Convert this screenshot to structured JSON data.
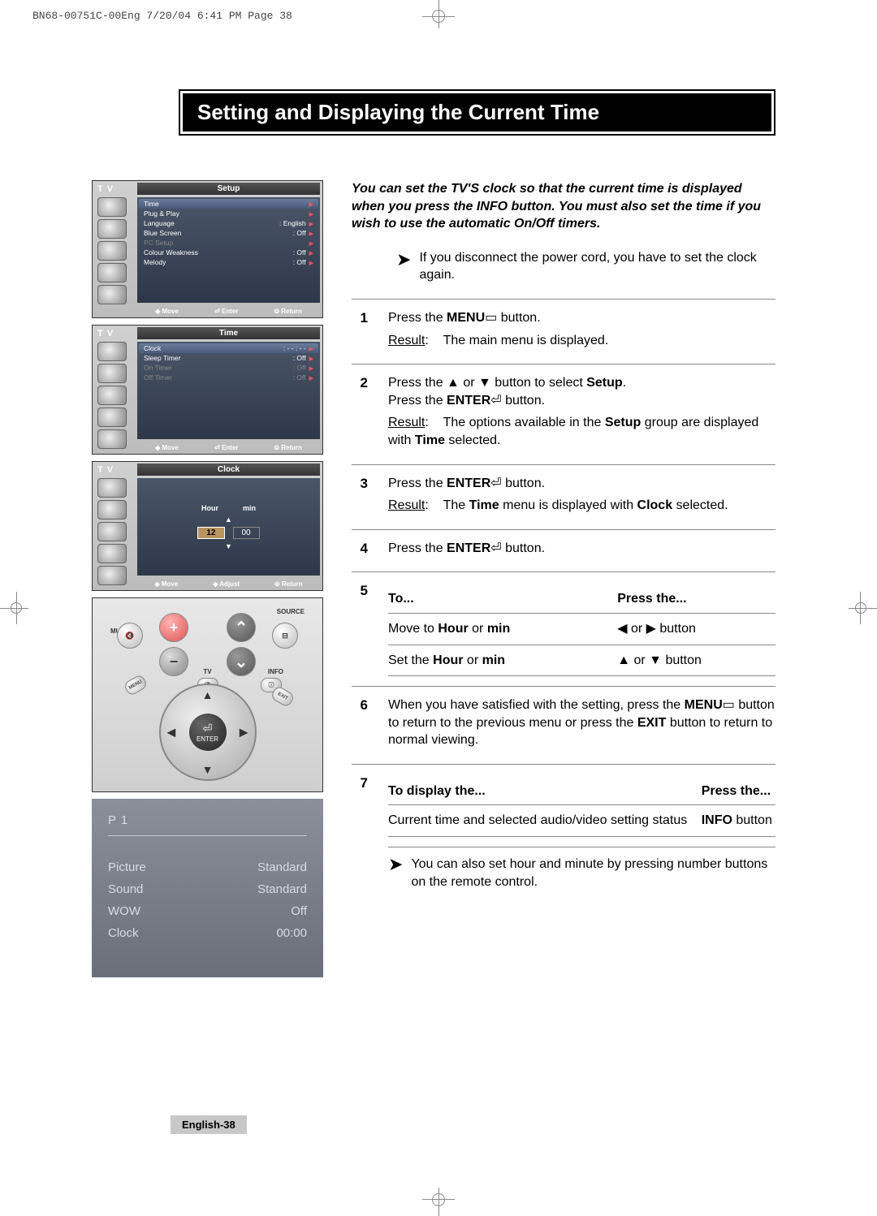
{
  "header_line": "BN68-00751C-00Eng  7/20/04 6:41 PM  Page 38",
  "title": "Setting and Displaying the Current Time",
  "intro": "You can set the TV'S clock so that the current time is displayed when you press the INFO button. You must also set the time if you wish to use the automatic On/Off timers.",
  "note": "If you disconnect the power cord, you have to set the clock again.",
  "tv_label": "T V",
  "menus": {
    "setup": {
      "header": "Setup",
      "rows": [
        {
          "label": "Time",
          "value": "",
          "sel": true
        },
        {
          "label": "Plug & Play",
          "value": ""
        },
        {
          "label": "Language",
          "value": ": English"
        },
        {
          "label": "Blue Screen",
          "value": ": Off"
        },
        {
          "label": "PC Setup",
          "value": "",
          "dim": true
        },
        {
          "label": "Colour Weakness",
          "value": ": Off"
        },
        {
          "label": "Melody",
          "value": ": Off"
        }
      ],
      "footer": [
        "◆ Move",
        "⏎ Enter",
        "⦾ Return"
      ]
    },
    "time": {
      "header": "Time",
      "rows": [
        {
          "label": "Clock",
          "value": ": - - : - -",
          "sel": true
        },
        {
          "label": "Sleep Timer",
          "value": ": Off"
        },
        {
          "label": "On Timer",
          "value": ": Off",
          "dim": true
        },
        {
          "label": "Off Timer",
          "value": ": Off",
          "dim": true
        }
      ],
      "footer": [
        "◆ Move",
        "⏎ Enter",
        "⦾ Return"
      ]
    },
    "clock": {
      "header": "Clock",
      "hour_label": "Hour",
      "min_label": "min",
      "hour_value": "12",
      "min_value": "00",
      "footer": [
        "◆ Move",
        "◆ Adjust",
        "⦾ Return"
      ]
    }
  },
  "remote": {
    "mute": "MUTE",
    "source": "SOURCE",
    "tv": "TV",
    "info": "INFO",
    "menu": "MENU",
    "exit": "EXIT",
    "enter": "ENTER"
  },
  "info_panel": {
    "channel": "P 1",
    "rows": [
      {
        "label": "Picture",
        "value": "Standard"
      },
      {
        "label": "Sound",
        "value": "Standard"
      },
      {
        "label": "WOW",
        "value": "Off"
      },
      {
        "label": "Clock",
        "value": "00:00"
      }
    ]
  },
  "steps": [
    {
      "num": "1",
      "lines": [
        "Press the <b>MENU</b>▭ button.",
        "<span class='result-label'>Result</span>:&nbsp;&nbsp;&nbsp;&nbsp;The main menu is displayed."
      ]
    },
    {
      "num": "2",
      "lines": [
        "Press the ▲ or ▼ button to select <b>Setup</b>.<br>Press the <b>ENTER</b>⏎ button.",
        "<span class='result-label'>Result</span>:&nbsp;&nbsp;&nbsp;&nbsp;The options available in the <b>Setup</b> group are displayed with <b>Time</b> selected."
      ]
    },
    {
      "num": "3",
      "lines": [
        "Press the <b>ENTER</b>⏎ button.",
        "<span class='result-label'>Result</span>:&nbsp;&nbsp;&nbsp;&nbsp;The <b>Time</b> menu is displayed with <b>Clock</b> selected."
      ]
    },
    {
      "num": "4",
      "lines": [
        "Press the <b>ENTER</b>⏎ button."
      ]
    },
    {
      "num": "5",
      "table": {
        "head": [
          "To...",
          "Press the..."
        ],
        "rows": [
          [
            "Move to <b>Hour</b> or <b>min</b>",
            "◀ or ▶ button"
          ],
          [
            "Set the <b>Hour</b> or <b>min</b>",
            "▲ or ▼ button"
          ]
        ]
      }
    },
    {
      "num": "6",
      "lines": [
        "When you have satisfied with the setting, press the <b>MENU</b>▭ button to return to the previous menu or press the <b>EXIT</b> button to return to normal viewing."
      ]
    },
    {
      "num": "7",
      "table": {
        "head": [
          "To display the...",
          "Press the..."
        ],
        "rows": [
          [
            "Current time and selected audio/video setting status",
            "<b>INFO</b> button"
          ]
        ]
      }
    }
  ],
  "foot_note": "You can also set hour and minute by pressing number buttons on the remote control.",
  "page_label": "English-38"
}
